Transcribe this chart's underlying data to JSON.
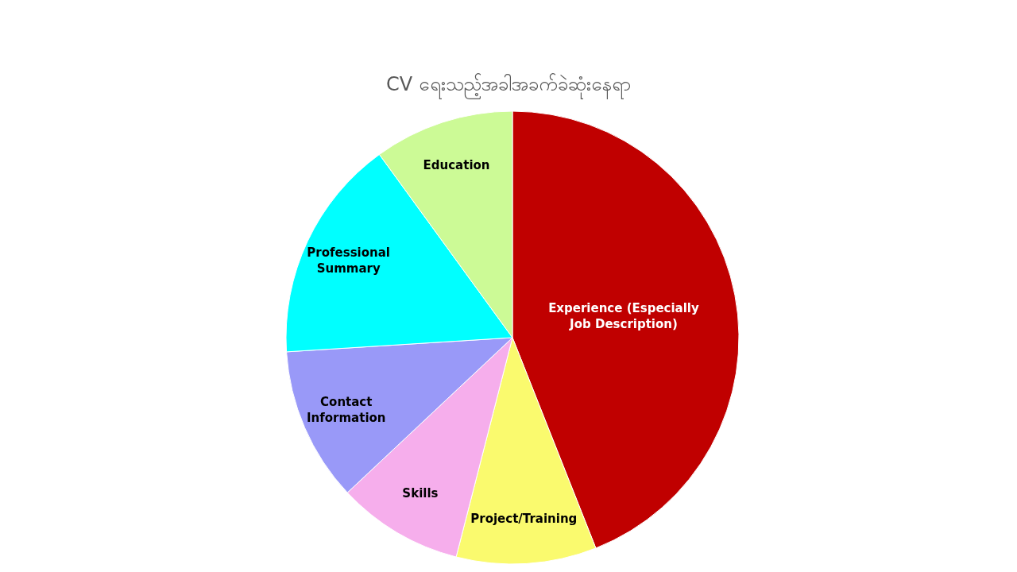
{
  "chart_data": {
    "type": "pie",
    "title": "CV ရေးသည့်အခါအခက်ခဲဆုံးနေရာ",
    "categories": [
      "Experience (Especially Job Description)",
      "Project/Training",
      "Skills",
      "Contact Information",
      "Professional Summary",
      "Education"
    ],
    "values": [
      44,
      10,
      9,
      11,
      16,
      10
    ],
    "colors": [
      "#c00000",
      "#fafa6e",
      "#f6aeec",
      "#9999f8",
      "#00ffff",
      "#ccfa96"
    ]
  }
}
